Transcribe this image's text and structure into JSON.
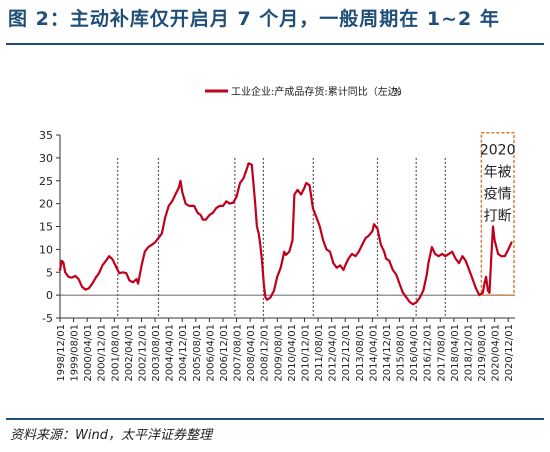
{
  "figure": {
    "title": "图 2：主动补库仅开启月 7 个月，一般周期在 1~2 年",
    "source": "资料来源：Wind，太平洋证券整理"
  },
  "colors": {
    "title": "#1f4e79",
    "series": "#c0001c",
    "dashed_lines": "#555555",
    "annotation_border": "#d47b32"
  },
  "chart_data": {
    "type": "line",
    "title": "",
    "xlabel": "",
    "ylabel": "",
    "ylim": [
      -5,
      35
    ],
    "yticks": [
      -5,
      0,
      5,
      10,
      15,
      20,
      25,
      30,
      35
    ],
    "grid": false,
    "legend_position": "top",
    "legend": {
      "label": "工业企业:产成品存货:累计同比（左边）",
      "unit": "%"
    },
    "xticks": [
      {
        "x": 1998.917,
        "label": "1998/12/01"
      },
      {
        "x": 1999.583,
        "label": "1999/08/01"
      },
      {
        "x": 2000.25,
        "label": "2000/04/01"
      },
      {
        "x": 2000.917,
        "label": "2000/12/01"
      },
      {
        "x": 2001.583,
        "label": "2001/08/01"
      },
      {
        "x": 2002.25,
        "label": "2002/04/01"
      },
      {
        "x": 2002.917,
        "label": "2002/12/01"
      },
      {
        "x": 2003.583,
        "label": "2003/08/01"
      },
      {
        "x": 2004.25,
        "label": "2004/04/01"
      },
      {
        "x": 2004.917,
        "label": "2004/12/01"
      },
      {
        "x": 2005.583,
        "label": "2005/08/01"
      },
      {
        "x": 2006.25,
        "label": "2006/04/01"
      },
      {
        "x": 2006.917,
        "label": "2006/12/01"
      },
      {
        "x": 2007.583,
        "label": "2007/08/01"
      },
      {
        "x": 2008.25,
        "label": "2008/04/01"
      },
      {
        "x": 2008.917,
        "label": "2008/12/01"
      },
      {
        "x": 2009.583,
        "label": "2009/08/01"
      },
      {
        "x": 2010.25,
        "label": "2010/04/01"
      },
      {
        "x": 2010.917,
        "label": "2010/12/01"
      },
      {
        "x": 2011.583,
        "label": "2011/08/01"
      },
      {
        "x": 2012.25,
        "label": "2012/04/01"
      },
      {
        "x": 2012.917,
        "label": "2012/12/01"
      },
      {
        "x": 2013.583,
        "label": "2013/08/01"
      },
      {
        "x": 2014.25,
        "label": "2014/04/01"
      },
      {
        "x": 2014.917,
        "label": "2014/12/01"
      },
      {
        "x": 2015.583,
        "label": "2015/08/01"
      },
      {
        "x": 2016.25,
        "label": "2016/04/01"
      },
      {
        "x": 2016.917,
        "label": "2016/12/01"
      },
      {
        "x": 2017.583,
        "label": "2017/08/01"
      },
      {
        "x": 2018.25,
        "label": "2018/04/01"
      },
      {
        "x": 2018.917,
        "label": "2018/12/01"
      },
      {
        "x": 2019.583,
        "label": "2019/08/01"
      },
      {
        "x": 2020.25,
        "label": "2020/04/01"
      },
      {
        "x": 2020.917,
        "label": "2020/12/01"
      }
    ],
    "xlim": [
      1998.917,
      2021.25
    ],
    "vertical_dashed_lines_x": [
      2001.75,
      2003.75,
      2007.5,
      2008.9,
      2011.35,
      2014.5,
      2016.4,
      2017.83
    ],
    "annotation": {
      "text_lines": [
        "2020",
        "年被",
        "疫情",
        "打断"
      ],
      "x_range": [
        2019.6,
        2021.2
      ],
      "y_range": [
        0,
        35.5
      ]
    },
    "series": [
      {
        "name": "工业企业:产成品存货:累计同比（左边）",
        "points": [
          [
            1998.917,
            5.5
          ],
          [
            1999.0,
            7.5
          ],
          [
            1999.08,
            7.2
          ],
          [
            1999.17,
            5.0
          ],
          [
            1999.33,
            4.0
          ],
          [
            1999.5,
            3.8
          ],
          [
            1999.67,
            4.2
          ],
          [
            1999.83,
            3.5
          ],
          [
            2000.0,
            1.8
          ],
          [
            2000.17,
            1.2
          ],
          [
            2000.33,
            1.5
          ],
          [
            2000.5,
            2.5
          ],
          [
            2000.67,
            3.8
          ],
          [
            2000.83,
            4.8
          ],
          [
            2001.0,
            6.5
          ],
          [
            2001.17,
            7.5
          ],
          [
            2001.33,
            8.5
          ],
          [
            2001.5,
            7.8
          ],
          [
            2001.58,
            7.0
          ],
          [
            2001.75,
            5.5
          ],
          [
            2001.83,
            4.8
          ],
          [
            2002.0,
            5.0
          ],
          [
            2002.17,
            4.8
          ],
          [
            2002.33,
            3.2
          ],
          [
            2002.5,
            2.8
          ],
          [
            2002.67,
            3.5
          ],
          [
            2002.75,
            2.5
          ],
          [
            2002.92,
            6.5
          ],
          [
            2003.08,
            9.5
          ],
          [
            2003.25,
            10.5
          ],
          [
            2003.42,
            11.0
          ],
          [
            2003.58,
            11.5
          ],
          [
            2003.75,
            12.5
          ],
          [
            2003.92,
            13.5
          ],
          [
            2004.08,
            17.0
          ],
          [
            2004.25,
            19.5
          ],
          [
            2004.42,
            20.5
          ],
          [
            2004.58,
            22.0
          ],
          [
            2004.75,
            23.5
          ],
          [
            2004.83,
            25.0
          ],
          [
            2004.92,
            22.5
          ],
          [
            2005.08,
            20.0
          ],
          [
            2005.25,
            19.5
          ],
          [
            2005.5,
            19.5
          ],
          [
            2005.67,
            18.0
          ],
          [
            2005.83,
            17.5
          ],
          [
            2005.92,
            16.5
          ],
          [
            2006.08,
            16.5
          ],
          [
            2006.25,
            17.5
          ],
          [
            2006.42,
            18.0
          ],
          [
            2006.58,
            19.0
          ],
          [
            2006.75,
            19.5
          ],
          [
            2006.92,
            19.5
          ],
          [
            2007.08,
            20.5
          ],
          [
            2007.25,
            20.0
          ],
          [
            2007.42,
            20.2
          ],
          [
            2007.58,
            21.5
          ],
          [
            2007.75,
            24.5
          ],
          [
            2007.92,
            25.5
          ],
          [
            2008.08,
            27.5
          ],
          [
            2008.17,
            28.8
          ],
          [
            2008.33,
            28.5
          ],
          [
            2008.42,
            24.0
          ],
          [
            2008.5,
            20.0
          ],
          [
            2008.58,
            15.0
          ],
          [
            2008.67,
            13.5
          ],
          [
            2008.75,
            11.0
          ],
          [
            2008.83,
            7.5
          ],
          [
            2008.92,
            2.5
          ],
          [
            2009.0,
            -0.5
          ],
          [
            2009.08,
            -1.0
          ],
          [
            2009.25,
            -0.5
          ],
          [
            2009.42,
            1.0
          ],
          [
            2009.58,
            4.0
          ],
          [
            2009.75,
            6.0
          ],
          [
            2009.83,
            7.5
          ],
          [
            2009.92,
            9.5
          ],
          [
            2010.0,
            8.8
          ],
          [
            2010.17,
            9.5
          ],
          [
            2010.33,
            12.0
          ],
          [
            2010.42,
            22.0
          ],
          [
            2010.58,
            23.0
          ],
          [
            2010.75,
            22.0
          ],
          [
            2010.92,
            23.5
          ],
          [
            2011.0,
            24.5
          ],
          [
            2011.17,
            24.0
          ],
          [
            2011.33,
            19.0
          ],
          [
            2011.5,
            17.0
          ],
          [
            2011.67,
            15.0
          ],
          [
            2011.83,
            12.0
          ],
          [
            2012.0,
            10.0
          ],
          [
            2012.17,
            9.5
          ],
          [
            2012.33,
            7.0
          ],
          [
            2012.5,
            6.0
          ],
          [
            2012.67,
            6.5
          ],
          [
            2012.83,
            5.5
          ],
          [
            2012.92,
            6.5
          ],
          [
            2013.08,
            8.0
          ],
          [
            2013.25,
            9.0
          ],
          [
            2013.42,
            8.5
          ],
          [
            2013.58,
            9.5
          ],
          [
            2013.75,
            11.0
          ],
          [
            2013.92,
            12.5
          ],
          [
            2014.08,
            13.0
          ],
          [
            2014.25,
            14.0
          ],
          [
            2014.33,
            15.5
          ],
          [
            2014.5,
            14.5
          ],
          [
            2014.67,
            11.0
          ],
          [
            2014.83,
            9.5
          ],
          [
            2014.92,
            8.0
          ],
          [
            2015.08,
            7.5
          ],
          [
            2015.25,
            5.5
          ],
          [
            2015.42,
            4.5
          ],
          [
            2015.58,
            2.5
          ],
          [
            2015.75,
            0.5
          ],
          [
            2015.92,
            -0.5
          ],
          [
            2016.08,
            -1.5
          ],
          [
            2016.25,
            -2.0
          ],
          [
            2016.42,
            -1.5
          ],
          [
            2016.58,
            -0.5
          ],
          [
            2016.75,
            1.0
          ],
          [
            2016.92,
            4.5
          ],
          [
            2017.0,
            7.0
          ],
          [
            2017.17,
            10.5
          ],
          [
            2017.33,
            9.0
          ],
          [
            2017.5,
            8.5
          ],
          [
            2017.67,
            9.0
          ],
          [
            2017.83,
            8.5
          ],
          [
            2018.0,
            9.0
          ],
          [
            2018.17,
            9.5
          ],
          [
            2018.33,
            8.0
          ],
          [
            2018.5,
            7.0
          ],
          [
            2018.67,
            8.5
          ],
          [
            2018.83,
            7.5
          ],
          [
            2019.0,
            5.5
          ],
          [
            2019.17,
            3.5
          ],
          [
            2019.33,
            1.5
          ],
          [
            2019.5,
            0.0
          ],
          [
            2019.67,
            0.5
          ],
          [
            2019.75,
            2.5
          ],
          [
            2019.83,
            4.0
          ],
          [
            2019.92,
            1.0
          ],
          [
            2020.0,
            0.5
          ],
          [
            2020.08,
            8.0
          ],
          [
            2020.17,
            15.0
          ],
          [
            2020.25,
            12.0
          ],
          [
            2020.42,
            9.0
          ],
          [
            2020.58,
            8.5
          ],
          [
            2020.75,
            8.5
          ],
          [
            2020.92,
            10.0
          ],
          [
            2021.08,
            11.5
          ]
        ]
      }
    ]
  }
}
